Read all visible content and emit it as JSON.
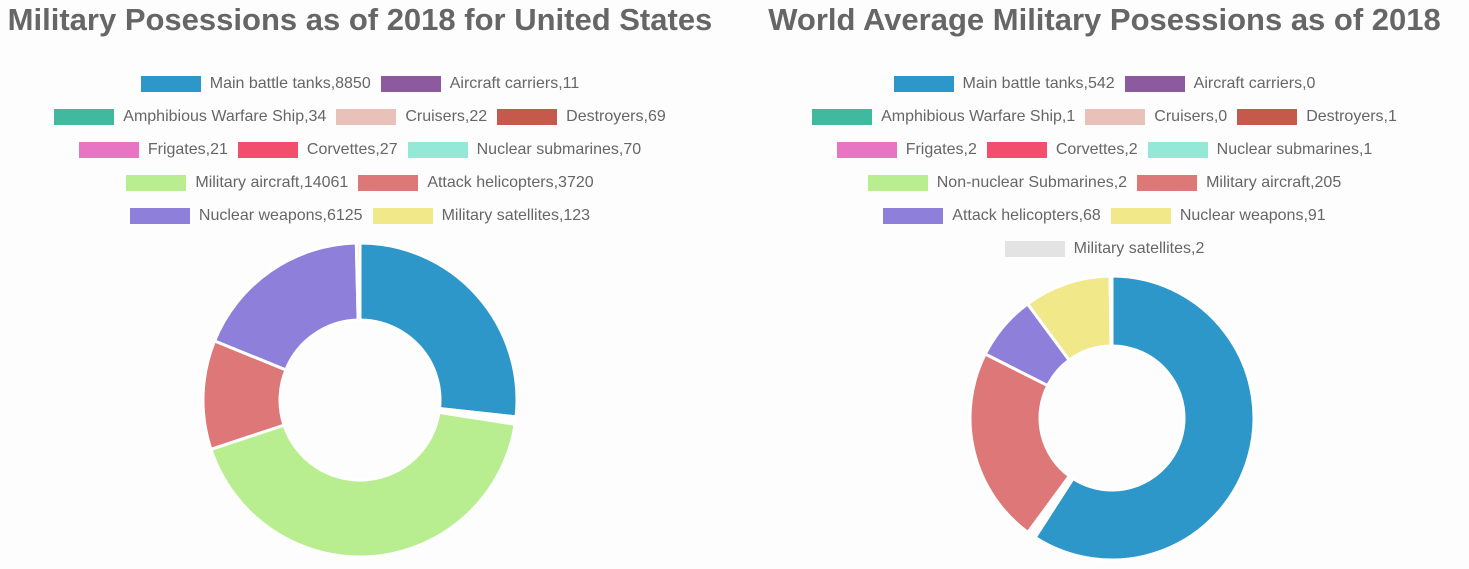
{
  "chart_data": [
    {
      "type": "pie",
      "style": "doughnut",
      "title": "Military Posessions as of 2018 for United States",
      "legend_position": "top",
      "categories": [
        "Main battle tanks",
        "Aircraft carriers",
        "Amphibious Warfare Ship",
        "Cruisers",
        "Destroyers",
        "Frigates",
        "Corvettes",
        "Nuclear submarines",
        "Military aircraft",
        "Attack helicopters",
        "Nuclear weapons",
        "Military satellites"
      ],
      "values": [
        8850,
        11,
        34,
        22,
        69,
        21,
        27,
        70,
        14061,
        3720,
        6125,
        123
      ],
      "legend_labels": [
        "Main battle tanks,8850",
        "Aircraft carriers,11",
        "Amphibious Warfare Ship,34",
        "Cruisers,22",
        "Destroyers,69",
        "Frigates,21",
        "Corvettes,27",
        "Nuclear submarines,70",
        "Military aircraft,14061",
        "Attack helicopters,3720",
        "Nuclear weapons,6125",
        "Military satellites,123"
      ],
      "colors": [
        "#2e97ca",
        "#8b5a9f",
        "#41b99f",
        "#e8c1b9",
        "#c55a4c",
        "#e874c4",
        "#f24f6e",
        "#94e8d8",
        "#b8ee90",
        "#de7777",
        "#8e7fdb",
        "#f1e88a"
      ],
      "legend_rows": [
        [
          0,
          1
        ],
        [
          2,
          3,
          4
        ],
        [
          5,
          6,
          7
        ],
        [
          8,
          9
        ],
        [
          10,
          11
        ]
      ]
    },
    {
      "type": "pie",
      "style": "doughnut",
      "title": "World Average Military Posessions as of 2018",
      "legend_position": "top",
      "categories": [
        "Main battle tanks",
        "Aircraft carriers",
        "Amphibious Warfare Ship",
        "Cruisers",
        "Destroyers",
        "Frigates",
        "Corvettes",
        "Nuclear submarines",
        "Non-nuclear Submarines",
        "Military aircraft",
        "Attack helicopters",
        "Nuclear weapons",
        "Military satellites"
      ],
      "values": [
        542,
        0,
        1,
        0,
        1,
        2,
        2,
        1,
        2,
        205,
        68,
        91,
        2
      ],
      "legend_labels": [
        "Main battle tanks,542",
        "Aircraft carriers,0",
        "Amphibious Warfare Ship,1",
        "Cruisers,0",
        "Destroyers,1",
        "Frigates,2",
        "Corvettes,2",
        "Nuclear submarines,1",
        "Non-nuclear Submarines,2",
        "Military aircraft,205",
        "Attack helicopters,68",
        "Nuclear weapons,91",
        "Military satellites,2"
      ],
      "colors": [
        "#2e97ca",
        "#8b5a9f",
        "#41b99f",
        "#e8c1b9",
        "#c55a4c",
        "#e874c4",
        "#f24f6e",
        "#94e8d8",
        "#b8ee90",
        "#de7777",
        "#8e7fdb",
        "#f1e88a",
        "#e3e3e3"
      ],
      "legend_rows": [
        [
          0,
          1
        ],
        [
          2,
          3,
          4
        ],
        [
          5,
          6,
          7
        ],
        [
          8,
          9
        ],
        [
          10,
          11
        ],
        [
          12
        ]
      ]
    }
  ]
}
